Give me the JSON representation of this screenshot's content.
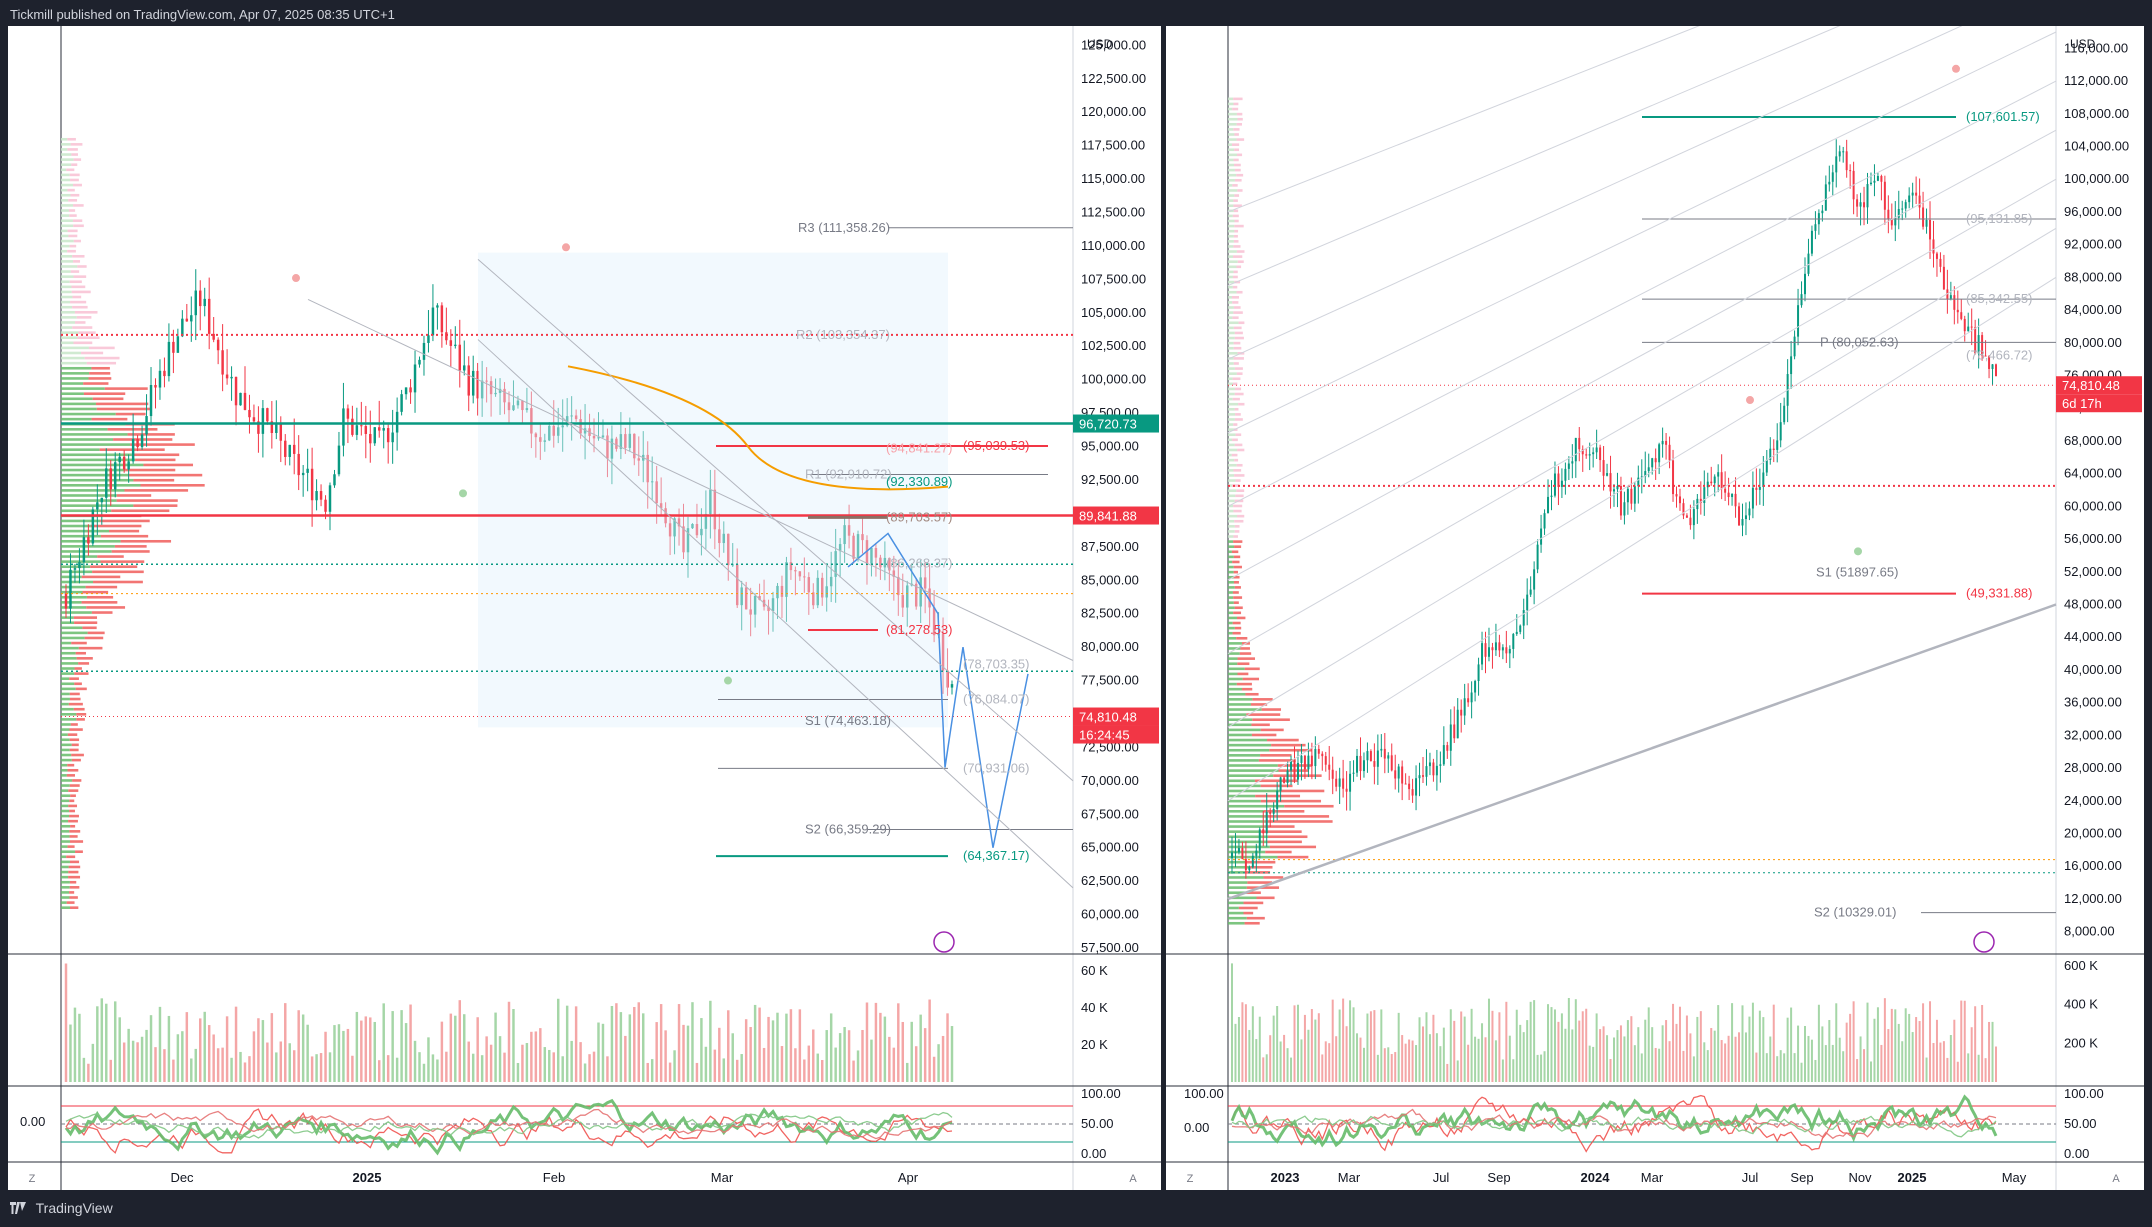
{
  "header": {
    "publisher": "Tickmill published on TradingView.com, Apr 07, 2025 08:35 UTC+1"
  },
  "footer": {
    "brand": "TradingView"
  },
  "left_chart": {
    "currency": "USD",
    "price_axis": [
      "125,000.00",
      "122,500.00",
      "120,000.00",
      "117,500.00",
      "115,000.00",
      "112,500.00",
      "110,000.00",
      "107,500.00",
      "105,000.00",
      "102,500.00",
      "100,000.00",
      "97,500.00",
      "95,000.00",
      "92,500.00",
      "90,000.00",
      "87,500.00",
      "85,000.00",
      "82,500.00",
      "80,000.00",
      "77,500.00",
      "75,000.00",
      "72,500.00",
      "70,000.00",
      "67,500.00",
      "65,000.00",
      "62,500.00",
      "60,000.00",
      "57,500.00"
    ],
    "time_axis": [
      "Dec",
      "2025",
      "Feb",
      "Mar",
      "Apr"
    ],
    "volume_axis": [
      "60 K",
      "40 K",
      "20 K"
    ],
    "osc_axis": [
      "100.00",
      "50.00",
      "0.00"
    ],
    "osc_left_value": "0.00",
    "badges": {
      "green_price": "96,720.73",
      "red_level": "89,841.88",
      "last_price": "74,810.48",
      "countdown": "16:24:45"
    },
    "level_labels": {
      "r3": "R3 (111,358.26)",
      "r2": "R2 (103,354.37)",
      "r1": "R1 (92,910.72)",
      "r1_alt": "(92,330.89)",
      "p94": "(94,841.27)",
      "p95": "(95,039.53)",
      "p89": "(89,703.57)",
      "p86": "(86,268.37)",
      "p81": "(81,278.53)",
      "p78": "(78,703.35)",
      "p76": "(76,084.07)",
      "s1": "S1 (74,463.18)",
      "p70": "(70,931.06)",
      "s2": "S2 (66,359.29)",
      "p64": "(64,367.17)"
    },
    "scale_left": "Z",
    "scale_right": "A"
  },
  "right_chart": {
    "currency": "USD",
    "price_axis": [
      "116,000.00",
      "112,000.00",
      "108,000.00",
      "104,000.00",
      "100,000.00",
      "96,000.00",
      "92,000.00",
      "88,000.00",
      "84,000.00",
      "80,000.00",
      "76,000.00",
      "72,000.00",
      "68,000.00",
      "64,000.00",
      "60,000.00",
      "56,000.00",
      "52,000.00",
      "48,000.00",
      "44,000.00",
      "40,000.00",
      "36,000.00",
      "32,000.00",
      "28,000.00",
      "24,000.00",
      "20,000.00",
      "16,000.00",
      "12,000.00",
      "8,000.00"
    ],
    "time_axis": [
      "2023",
      "Mar",
      "Jul",
      "Sep",
      "2024",
      "Mar",
      "Jul",
      "Sep",
      "Nov",
      "2025",
      "May"
    ],
    "volume_axis": [
      "600 K",
      "400 K",
      "200 K"
    ],
    "osc_axis": [
      "100.00",
      "50.00",
      "0.00"
    ],
    "osc_left_axis": [
      "100.00",
      "0.00"
    ],
    "badges": {
      "last_price": "74,810.48",
      "countdown": "6d 17h"
    },
    "level_labels": {
      "p107": "(107,601.57)",
      "p95": "(95,131.85)",
      "p85": "(85,342.55)",
      "p": "P (80,052.63)",
      "p78": "(78,466.72)",
      "s1": "S1 (51897.65)",
      "p49": "(49,331.88)",
      "s2": "S2 (10329.01)"
    },
    "scale_left": "Z",
    "scale_right": "A"
  },
  "chart_data": [
    {
      "type": "candlestick",
      "title": "",
      "ylabel": "USD",
      "ylim": [
        57500,
        126000
      ],
      "grid": false,
      "x_labels": [
        "Dec",
        "2025",
        "Feb",
        "Mar",
        "Apr"
      ],
      "last_price": 74810.48,
      "key_levels": [
        111358.26,
        103354.37,
        96720.73,
        95039.53,
        94841.27,
        92910.72,
        92330.89,
        89841.88,
        89703.57,
        86268.37,
        81278.53,
        78703.35,
        76084.07,
        74463.18,
        70931.06,
        66359.29,
        64367.17
      ],
      "price_path": [
        [
          0,
          84000
        ],
        [
          8,
          92000
        ],
        [
          16,
          96000
        ],
        [
          24,
          103000
        ],
        [
          30,
          106000
        ],
        [
          38,
          99000
        ],
        [
          46,
          96000
        ],
        [
          50,
          94000
        ],
        [
          58,
          91000
        ],
        [
          62,
          97000
        ],
        [
          70,
          95000
        ],
        [
          76,
          99000
        ],
        [
          82,
          105000
        ],
        [
          90,
          100000
        ],
        [
          98,
          98000
        ],
        [
          106,
          96000
        ],
        [
          114,
          97000
        ],
        [
          120,
          95000
        ],
        [
          126,
          95000
        ],
        [
          132,
          92000
        ],
        [
          138,
          87000
        ],
        [
          144,
          91000
        ],
        [
          150,
          84000
        ],
        [
          156,
          82000
        ],
        [
          162,
          86000
        ],
        [
          168,
          84000
        ],
        [
          174,
          88000
        ],
        [
          180,
          87000
        ],
        [
          186,
          84000
        ],
        [
          192,
          84000
        ],
        [
          198,
          77000
        ]
      ],
      "volume_ylim": [
        0,
        65000
      ]
    },
    {
      "type": "candlestick",
      "title": "",
      "ylabel": "USD",
      "ylim": [
        6000,
        118000
      ],
      "grid": false,
      "x_labels": [
        "2023",
        "Mar",
        "Jul",
        "Sep",
        "2024",
        "Mar",
        "Jul",
        "Sep",
        "Nov",
        "2025",
        "May"
      ],
      "last_price": 74810.48,
      "key_levels": [
        107601.57,
        95131.85,
        85342.55,
        80052.63,
        78466.72,
        51897.65,
        49331.88,
        10329.01
      ],
      "price_path": [
        [
          0,
          17000
        ],
        [
          6,
          16500
        ],
        [
          10,
          23000
        ],
        [
          18,
          28000
        ],
        [
          24,
          29000
        ],
        [
          32,
          26000
        ],
        [
          40,
          30000
        ],
        [
          48,
          27000
        ],
        [
          52,
          26000
        ],
        [
          60,
          29000
        ],
        [
          66,
          35000
        ],
        [
          72,
          42000
        ],
        [
          80,
          43000
        ],
        [
          86,
          50000
        ],
        [
          92,
          62000
        ],
        [
          100,
          68000
        ],
        [
          106,
          66000
        ],
        [
          112,
          60000
        ],
        [
          118,
          63000
        ],
        [
          124,
          68000
        ],
        [
          130,
          58000
        ],
        [
          136,
          61000
        ],
        [
          140,
          64000
        ],
        [
          146,
          59000
        ],
        [
          152,
          62000
        ],
        [
          158,
          70000
        ],
        [
          166,
          92000
        ],
        [
          172,
          100000
        ],
        [
          176,
          104000
        ],
        [
          180,
          96000
        ],
        [
          186,
          100000
        ],
        [
          190,
          94000
        ],
        [
          196,
          98000
        ],
        [
          202,
          92000
        ],
        [
          208,
          84000
        ],
        [
          214,
          80000
        ],
        [
          220,
          77000
        ]
      ],
      "volume_ylim": [
        0,
        620000
      ]
    }
  ]
}
